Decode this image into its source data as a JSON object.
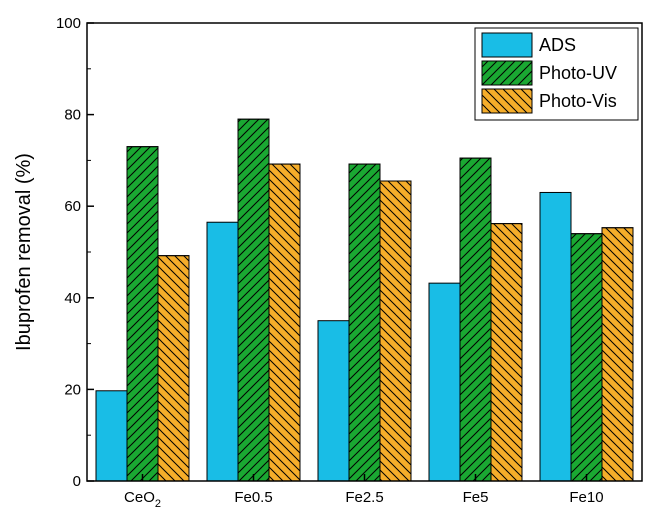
{
  "chart_data": {
    "type": "bar",
    "ylabel": "Ibuprofen removal (%)",
    "xlabel": "",
    "ylim": [
      0,
      100
    ],
    "yticks": [
      0,
      20,
      40,
      60,
      80,
      100
    ],
    "categories": [
      {
        "base": "CeO",
        "sub": "2"
      },
      {
        "base": "Fe0.5",
        "sub": ""
      },
      {
        "base": "Fe2.5",
        "sub": ""
      },
      {
        "base": "Fe5",
        "sub": ""
      },
      {
        "base": "Fe10",
        "sub": ""
      }
    ],
    "series": [
      {
        "name": "ADS",
        "values": [
          19.7,
          56.5,
          35.0,
          43.2,
          63.0
        ],
        "color": "#19bde6",
        "pattern": "solid"
      },
      {
        "name": "Photo-UV",
        "values": [
          73.0,
          79.0,
          69.2,
          70.5,
          54.0
        ],
        "color": "#1aa832",
        "pattern": "hatch-right"
      },
      {
        "name": "Photo-Vis",
        "values": [
          49.2,
          69.2,
          65.5,
          56.2,
          55.3
        ],
        "color": "#f5ad2a",
        "pattern": "hatch-left"
      }
    ],
    "legend_position": "top-right",
    "grid": false
  }
}
